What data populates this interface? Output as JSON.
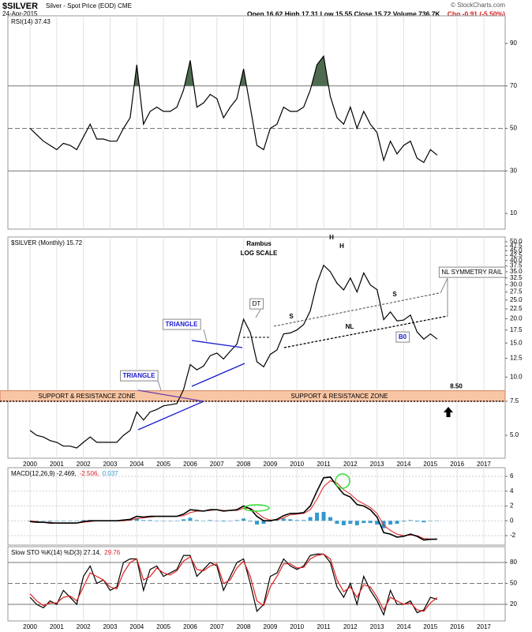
{
  "header": {
    "symbol": "$SILVER",
    "description": "Silver - Spot Price (EOD) CME",
    "date": "24-Apr-2015",
    "quote": "Open 16.62 High 17.31 Low 15.55 Close 15.72 Volume 736.7K",
    "change": "Chg -0.91 (-5.50%)",
    "copyright": "© StockCharts.com"
  },
  "chart_data": [
    {
      "type": "line",
      "legend": "RSI(14) 37.43",
      "color": "#000000",
      "overbought_fill": "#4f6b4f",
      "x": [
        2000,
        2000.25,
        2000.5,
        2000.75,
        2001,
        2001.25,
        2001.5,
        2001.75,
        2002,
        2002.25,
        2002.5,
        2002.75,
        2003,
        2003.25,
        2003.5,
        2003.75,
        2004,
        2004.25,
        2004.5,
        2004.75,
        2005,
        2005.25,
        2005.5,
        2005.75,
        2006,
        2006.25,
        2006.5,
        2006.75,
        2007,
        2007.25,
        2007.5,
        2007.75,
        2008,
        2008.25,
        2008.5,
        2008.75,
        2009,
        2009.25,
        2009.5,
        2009.75,
        2010,
        2010.25,
        2010.5,
        2010.75,
        2011,
        2011.25,
        2011.5,
        2011.75,
        2012,
        2012.25,
        2012.5,
        2012.75,
        2013,
        2013.25,
        2013.5,
        2013.75,
        2014,
        2014.25,
        2014.5,
        2014.75,
        2015,
        2015.25
      ],
      "values": [
        50,
        47,
        44,
        42,
        40,
        43,
        42,
        40,
        46,
        52,
        45,
        45,
        44,
        44,
        50,
        55,
        80,
        52,
        58,
        60,
        58,
        58,
        60,
        68,
        82,
        60,
        62,
        66,
        64,
        55,
        60,
        64,
        78,
        60,
        42,
        40,
        50,
        52,
        60,
        58,
        58,
        60,
        68,
        80,
        84,
        65,
        55,
        52,
        60,
        50,
        58,
        52,
        48,
        35,
        44,
        38,
        42,
        44,
        36,
        34,
        40,
        37.43
      ],
      "xlim": [
        1999.17,
        2017.8
      ],
      "xticks": [
        2000,
        2001,
        2002,
        2003,
        2004,
        2005,
        2006,
        2007,
        2008,
        2009,
        2010,
        2011,
        2012,
        2013,
        2014,
        2015,
        2016,
        2017
      ],
      "show_xtick_labels": false,
      "ylim": [
        2.6,
        103
      ],
      "yticks": [
        10,
        30,
        50,
        70,
        90
      ],
      "reference_lines": [
        70,
        50,
        30
      ],
      "grid": false
    },
    {
      "type": "line",
      "log": true,
      "legend": "$SILVER (Monthly) 15.72",
      "color": "#000000",
      "x": [
        2000,
        2000.25,
        2000.5,
        2000.75,
        2001,
        2001.25,
        2001.5,
        2001.75,
        2002,
        2002.25,
        2002.5,
        2002.75,
        2003,
        2003.25,
        2003.5,
        2003.75,
        2004,
        2004.25,
        2004.5,
        2004.75,
        2005,
        2005.25,
        2005.5,
        2005.75,
        2006,
        2006.25,
        2006.5,
        2006.75,
        2007,
        2007.25,
        2007.5,
        2007.75,
        2008,
        2008.25,
        2008.5,
        2008.75,
        2009,
        2009.25,
        2009.5,
        2009.75,
        2010,
        2010.25,
        2010.5,
        2010.75,
        2011,
        2011.25,
        2011.5,
        2011.75,
        2012,
        2012.25,
        2012.5,
        2012.75,
        2013,
        2013.25,
        2013.5,
        2013.75,
        2014,
        2014.25,
        2014.5,
        2014.75,
        2015,
        2015.25
      ],
      "values": [
        5.3,
        5.0,
        4.9,
        4.7,
        4.6,
        4.4,
        4.4,
        4.3,
        4.6,
        4.9,
        4.6,
        4.6,
        4.6,
        4.6,
        5.0,
        5.3,
        6.6,
        6.0,
        6.6,
        6.8,
        7.1,
        7.2,
        7.3,
        8.6,
        11.6,
        10.9,
        11.4,
        12.9,
        13.3,
        12.4,
        13.6,
        14.8,
        19.9,
        17.0,
        12.0,
        11.3,
        13.1,
        13.8,
        16.7,
        16.9,
        17.5,
        18.7,
        22.0,
        30.6,
        37.8,
        35.0,
        30.5,
        28.2,
        32.5,
        27.5,
        34.5,
        29.9,
        28.3,
        19.8,
        21.7,
        19.5,
        19.7,
        20.9,
        17.1,
        15.7,
        16.7,
        15.72
      ],
      "xlim": [
        1999.17,
        2017.8
      ],
      "xticks": [
        2000,
        2001,
        2002,
        2003,
        2004,
        2005,
        2006,
        2007,
        2008,
        2009,
        2010,
        2011,
        2012,
        2013,
        2014,
        2015,
        2016,
        2017
      ],
      "show_xtick_labels": true,
      "ylim": [
        3.81,
        52.9
      ],
      "yticks": [
        {
          "value": 5,
          "label": "5.0"
        },
        7.5,
        {
          "value": 10,
          "label": "10.0"
        },
        12.5,
        {
          "value": 15,
          "label": "15.0"
        },
        17.5,
        {
          "value": 20,
          "label": "20.0"
        },
        22.5,
        {
          "value": 25,
          "label": "25.0"
        },
        27.5,
        {
          "value": 30,
          "label": "30.0"
        },
        32.5,
        {
          "value": 35,
          "label": "35.0"
        },
        37.5,
        {
          "value": 40,
          "label": "40.0"
        },
        42.5,
        {
          "value": 45,
          "label": "45.0"
        },
        47.5,
        {
          "value": 50,
          "label": "50.0"
        }
      ],
      "grid": false,
      "zone": {
        "low": 7.5,
        "high": {
          "value": 8.5,
          "label": "8.50"
        },
        "color": "#f8c6a4"
      },
      "annotations": [
        "Rambus",
        "LOG SCALE",
        "H",
        "H",
        "S",
        "S",
        "NL",
        "DT",
        "TRIANGLE",
        "TRIANGLE",
        "SUPPORT & RESISTANCE ZONE",
        "SUPPORT & RESISTANCE ZONE",
        "NL SYMMETRY RAIL",
        "B0"
      ]
    },
    {
      "type": "macd",
      "legend_parts": [
        {
          "text": "MACD(12,26,9) -2.469,",
          "color": "#000000"
        },
        {
          "text": "-2.506,",
          "color": "#e02020"
        },
        {
          "text": "0.037",
          "color": "#3399cc"
        }
      ],
      "x": [
        2000,
        2000.25,
        2000.5,
        2000.75,
        2001,
        2001.25,
        2001.5,
        2001.75,
        2002,
        2002.25,
        2002.5,
        2002.75,
        2003,
        2003.25,
        2003.5,
        2003.75,
        2004,
        2004.25,
        2004.5,
        2004.75,
        2005,
        2005.25,
        2005.5,
        2005.75,
        2006,
        2006.25,
        2006.5,
        2006.75,
        2007,
        2007.25,
        2007.5,
        2007.75,
        2008,
        2008.25,
        2008.5,
        2008.75,
        2009,
        2009.25,
        2009.5,
        2009.75,
        2010,
        2010.25,
        2010.5,
        2010.75,
        2011,
        2011.25,
        2011.5,
        2011.75,
        2012,
        2012.25,
        2012.5,
        2012.75,
        2013,
        2013.25,
        2013.5,
        2013.75,
        2014,
        2014.25,
        2014.5,
        2014.75,
        2015,
        2015.25
      ],
      "series": [
        {
          "color": "#000000",
          "values": [
            -0.1,
            -0.2,
            -0.2,
            -0.3,
            -0.3,
            -0.3,
            -0.3,
            -0.3,
            -0.1,
            0.0,
            0.0,
            0.0,
            0.0,
            0.0,
            0.1,
            0.2,
            0.6,
            0.5,
            0.6,
            0.6,
            0.6,
            0.6,
            0.6,
            0.9,
            1.5,
            1.4,
            1.3,
            1.5,
            1.5,
            1.3,
            1.4,
            1.5,
            2.0,
            1.6,
            0.6,
            0.0,
            0.0,
            0.2,
            0.7,
            1.0,
            1.0,
            1.1,
            2.0,
            4.0,
            5.8,
            5.9,
            4.7,
            3.6,
            3.2,
            2.2,
            2.0,
            1.5,
            0.5,
            -1.6,
            -1.8,
            -2.2,
            -2.1,
            -1.8,
            -2.1,
            -2.6,
            -2.5,
            -2.469
          ]
        },
        {
          "color": "#e02020",
          "values": [
            0.0,
            -0.1,
            -0.2,
            -0.2,
            -0.3,
            -0.3,
            -0.3,
            -0.3,
            -0.2,
            -0.1,
            0.0,
            0.0,
            0.0,
            0.0,
            0.0,
            0.1,
            0.3,
            0.4,
            0.5,
            0.6,
            0.6,
            0.6,
            0.6,
            0.7,
            1.1,
            1.3,
            1.3,
            1.4,
            1.5,
            1.4,
            1.4,
            1.4,
            1.7,
            1.7,
            1.1,
            0.4,
            0.1,
            0.1,
            0.4,
            0.8,
            0.9,
            1.0,
            1.5,
            2.9,
            4.6,
            5.4,
            5.1,
            4.2,
            3.6,
            2.8,
            2.3,
            1.8,
            1.0,
            -0.6,
            -1.3,
            -1.8,
            -2.0,
            -1.9,
            -2.0,
            -2.4,
            -2.45,
            -2.506
          ]
        },
        {
          "color": "#3399cc",
          "values": [
            -0.1,
            -0.1,
            0.0,
            -0.1,
            0.0,
            0.0,
            0.0,
            0.0,
            0.1,
            0.1,
            0.0,
            0.0,
            0.0,
            0.0,
            0.1,
            0.1,
            0.3,
            0.1,
            0.1,
            0.0,
            0.0,
            0.0,
            0.0,
            0.2,
            0.4,
            0.1,
            0.0,
            0.1,
            0.0,
            -0.1,
            0.0,
            0.1,
            0.3,
            -0.1,
            -0.5,
            -0.4,
            -0.1,
            0.1,
            0.3,
            0.2,
            0.1,
            0.1,
            0.5,
            1.1,
            1.2,
            0.5,
            -0.4,
            -0.6,
            -0.4,
            -0.6,
            -0.3,
            -0.3,
            -0.5,
            -1.0,
            -0.5,
            -0.4,
            -0.1,
            0.1,
            -0.1,
            -0.2,
            -0.05,
            0.037
          ]
        }
      ],
      "xlim": [
        1999.17,
        2017.8
      ],
      "xticks": [
        2000,
        2001,
        2002,
        2003,
        2004,
        2005,
        2006,
        2007,
        2008,
        2009,
        2010,
        2011,
        2012,
        2013,
        2014,
        2015,
        2016,
        2017
      ],
      "show_xtick_labels": false,
      "ylim": [
        -3.28,
        7.17
      ],
      "yticks": [
        -2,
        0,
        2,
        4,
        6
      ],
      "grid": true
    },
    {
      "type": "line",
      "legend_parts": [
        {
          "text": "Slow STO %K(14) %D(3) 27.14,",
          "color": "#000000"
        },
        {
          "text": "29.76",
          "color": "#e02020"
        }
      ],
      "x": [
        2000,
        2000.25,
        2000.5,
        2000.75,
        2001,
        2001.25,
        2001.5,
        2001.75,
        2002,
        2002.25,
        2002.5,
        2002.75,
        2003,
        2003.25,
        2003.5,
        2003.75,
        2004,
        2004.25,
        2004.5,
        2004.75,
        2005,
        2005.25,
        2005.5,
        2005.75,
        2006,
        2006.25,
        2006.5,
        2006.75,
        2007,
        2007.25,
        2007.5,
        2007.75,
        2008,
        2008.25,
        2008.5,
        2008.75,
        2009,
        2009.25,
        2009.5,
        2009.75,
        2010,
        2010.25,
        2010.5,
        2010.75,
        2011,
        2011.25,
        2011.5,
        2011.75,
        2012,
        2012.25,
        2012.5,
        2012.75,
        2013,
        2013.25,
        2013.5,
        2013.75,
        2014,
        2014.25,
        2014.5,
        2014.75,
        2015,
        2015.25
      ],
      "series": [
        {
          "color": "#000000",
          "values": [
            30,
            20,
            15,
            25,
            20,
            40,
            30,
            20,
            60,
            75,
            50,
            55,
            40,
            45,
            80,
            85,
            85,
            40,
            70,
            75,
            60,
            65,
            70,
            90,
            90,
            60,
            70,
            80,
            75,
            40,
            60,
            80,
            85,
            50,
            10,
            20,
            60,
            65,
            85,
            75,
            70,
            75,
            90,
            92,
            92,
            80,
            45,
            30,
            50,
            20,
            60,
            40,
            25,
            5,
            40,
            20,
            20,
            25,
            8,
            12,
            30,
            27.14
          ]
        },
        {
          "color": "#e02020",
          "values": [
            35,
            25,
            18,
            22,
            22,
            30,
            32,
            25,
            45,
            65,
            60,
            55,
            45,
            42,
            65,
            80,
            85,
            55,
            60,
            72,
            65,
            62,
            68,
            82,
            88,
            70,
            68,
            75,
            78,
            50,
            55,
            72,
            82,
            60,
            25,
            18,
            45,
            60,
            78,
            78,
            72,
            73,
            85,
            90,
            92,
            85,
            55,
            38,
            45,
            30,
            48,
            45,
            30,
            12,
            30,
            25,
            20,
            22,
            12,
            10,
            22,
            29.76
          ]
        }
      ],
      "xlim": [
        1999.17,
        2017.8
      ],
      "xticks": [
        2000,
        2001,
        2002,
        2003,
        2004,
        2005,
        2006,
        2007,
        2008,
        2009,
        2010,
        2011,
        2012,
        2013,
        2014,
        2015,
        2016,
        2017
      ],
      "show_xtick_labels": true,
      "ylim": [
        -3.8,
        102.6
      ],
      "yticks": [
        20,
        50,
        80
      ],
      "reference_lines": [
        80,
        50,
        20
      ],
      "grid": false
    }
  ]
}
